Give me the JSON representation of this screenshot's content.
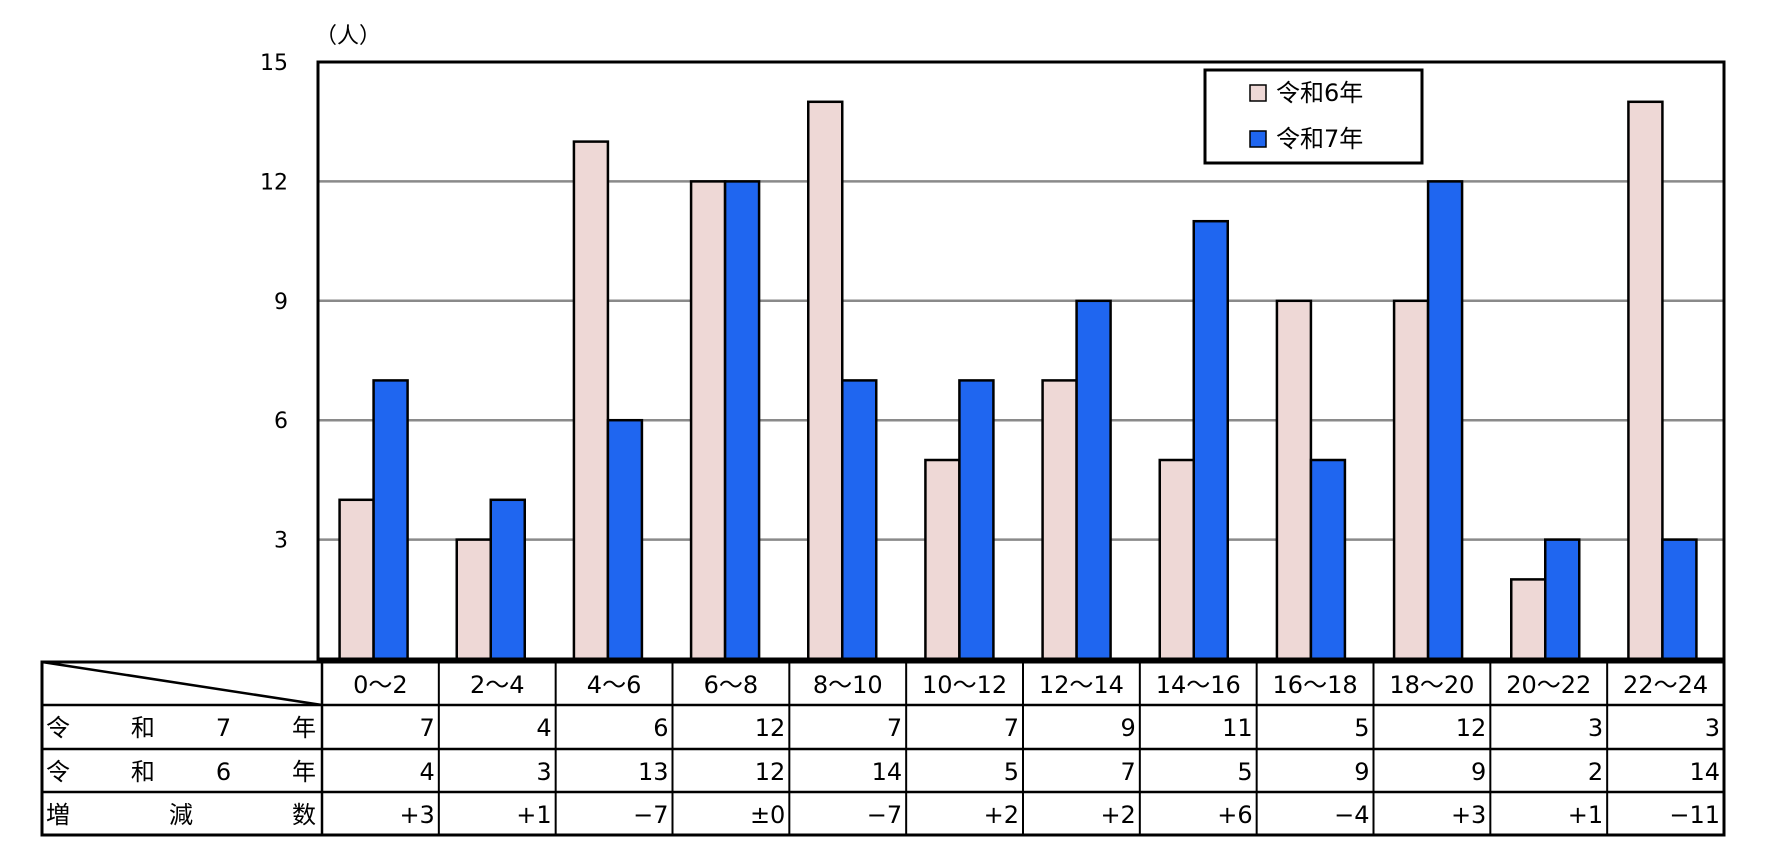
{
  "chart_data": {
    "type": "bar",
    "unit_label": "（人）",
    "categories": [
      "0～2",
      "2～4",
      "4～6",
      "6～8",
      "8～10",
      "10～12",
      "12～14",
      "14～16",
      "16～18",
      "18～20",
      "20～22",
      "22～24"
    ],
    "series": [
      {
        "name": "令和6年",
        "color": "#eed8d6",
        "values": [
          4,
          3,
          13,
          12,
          14,
          5,
          7,
          5,
          9,
          9,
          2,
          14
        ]
      },
      {
        "name": "令和7年",
        "color": "#1f66f0",
        "values": [
          7,
          4,
          6,
          12,
          7,
          7,
          9,
          11,
          5,
          12,
          3,
          3
        ]
      }
    ],
    "ylim": [
      0,
      15
    ],
    "yticks": [
      3,
      6,
      9,
      12,
      15
    ],
    "grid": true,
    "legend_position": "top-right"
  },
  "table": {
    "rows": [
      {
        "label": "令　　和　　7　　年",
        "values": [
          "7",
          "4",
          "6",
          "12",
          "7",
          "7",
          "9",
          "11",
          "5",
          "12",
          "3",
          "3"
        ]
      },
      {
        "label": "令　　和　　6　　年",
        "values": [
          "4",
          "3",
          "13",
          "12",
          "14",
          "5",
          "7",
          "5",
          "9",
          "9",
          "2",
          "14"
        ]
      },
      {
        "label": "増　　　減　　　数",
        "values": [
          "+3",
          "+1",
          "−7",
          "±0",
          "−7",
          "+2",
          "+2",
          "+6",
          "−4",
          "+3",
          "+1",
          "−11"
        ]
      }
    ]
  }
}
